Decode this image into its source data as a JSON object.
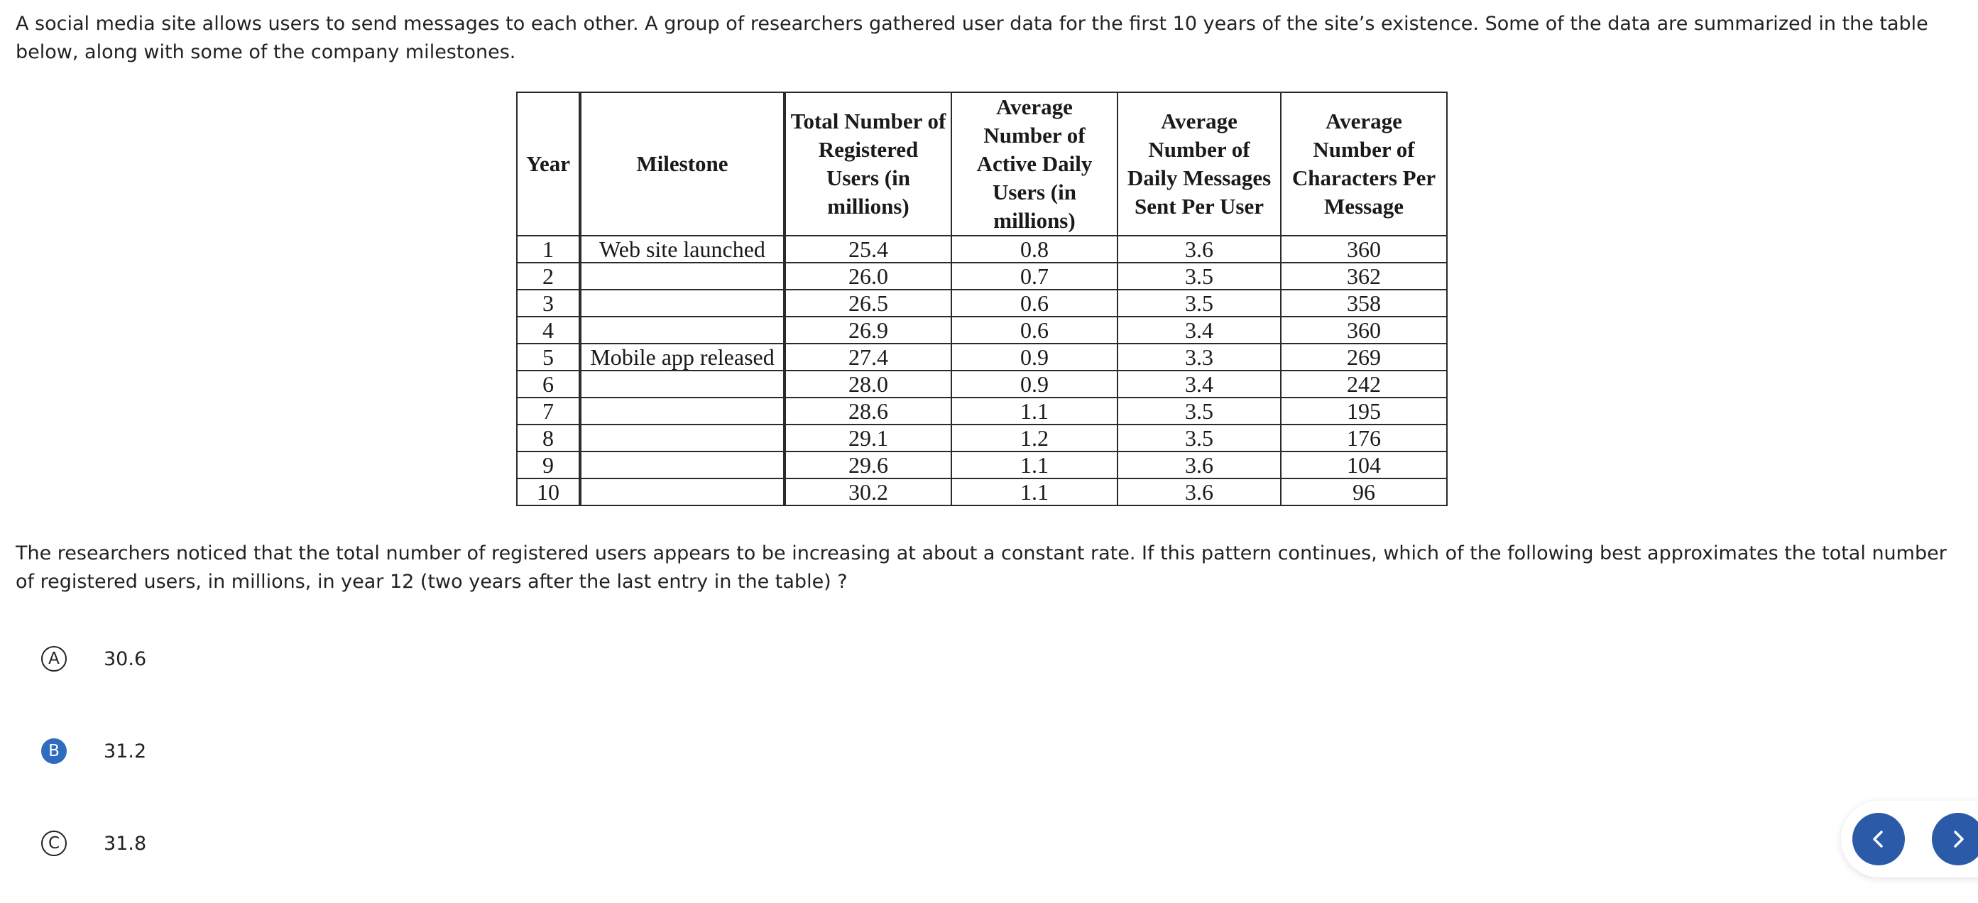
{
  "intro": "A social media site allows users to send messages to each other. A group of researchers gathered user data for the first 10 years of the site’s existence. Some of the data are summarized in the table below, along with some of the company milestones.",
  "table": {
    "headers": [
      "Year",
      "Milestone",
      "Total Number of Registered Users (in millions)",
      "Average Number of Active Daily Users (in millions)",
      "Average Number of Daily Messages Sent Per User",
      "Average Number of Characters Per Message"
    ],
    "rows": [
      [
        "1",
        "Web site launched",
        "25.4",
        "0.8",
        "3.6",
        "360"
      ],
      [
        "2",
        "",
        "26.0",
        "0.7",
        "3.5",
        "362"
      ],
      [
        "3",
        "",
        "26.5",
        "0.6",
        "3.5",
        "358"
      ],
      [
        "4",
        "",
        "26.9",
        "0.6",
        "3.4",
        "360"
      ],
      [
        "5",
        "Mobile app released",
        "27.4",
        "0.9",
        "3.3",
        "269"
      ],
      [
        "6",
        "",
        "28.0",
        "0.9",
        "3.4",
        "242"
      ],
      [
        "7",
        "",
        "28.6",
        "1.1",
        "3.5",
        "195"
      ],
      [
        "8",
        "",
        "29.1",
        "1.2",
        "3.5",
        "176"
      ],
      [
        "9",
        "",
        "29.6",
        "1.1",
        "3.6",
        "104"
      ],
      [
        "10",
        "",
        "30.2",
        "1.1",
        "3.6",
        "96"
      ]
    ]
  },
  "question": "The researchers noticed that the total number of registered users appears to be increasing at about a constant rate. If this pattern continues, which of the following best approximates the total number of registered users, in millions, in year 12 (two years after the last entry in the table) ?",
  "choices": [
    {
      "letter": "A",
      "value": "30.6",
      "selected": false
    },
    {
      "letter": "B",
      "value": "31.2",
      "selected": true
    },
    {
      "letter": "C",
      "value": "31.8",
      "selected": false
    }
  ],
  "nav": {
    "prev_icon": "chevron-left-icon",
    "next_icon": "chevron-right-icon",
    "button_color": "#2a5aa8"
  },
  "colors": {
    "selected_choice": "#2f6bbf"
  }
}
